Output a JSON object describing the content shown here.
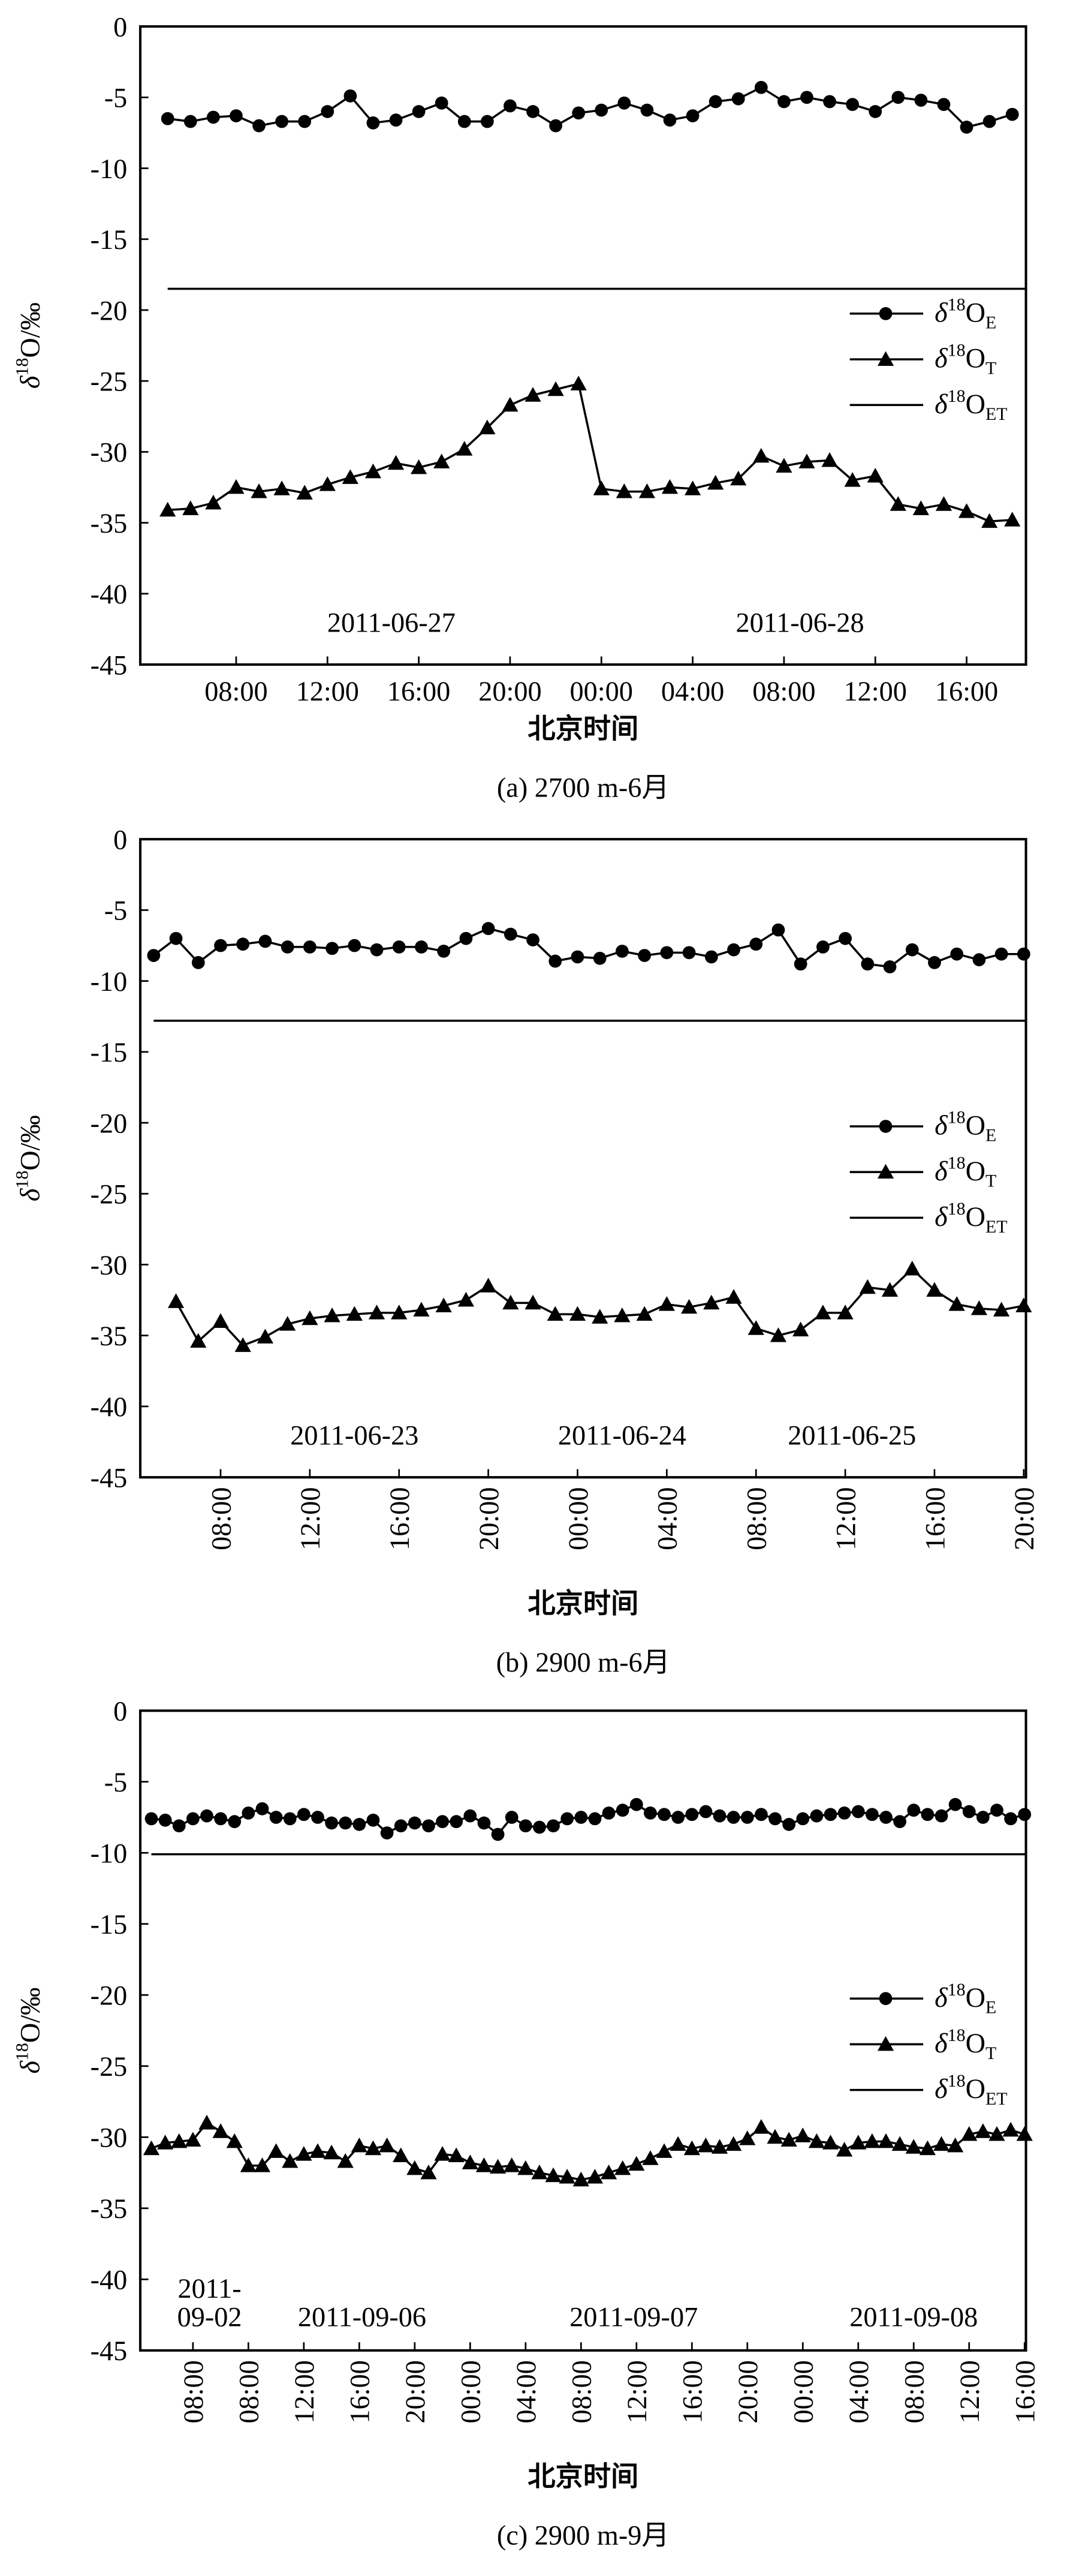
{
  "chart_data": [
    {
      "type": "line",
      "caption": "(a) 2700 m-6月",
      "xlabel": "北京时间",
      "ylabel": "δ18O/‰",
      "legend": "right",
      "xtick_rotation": 0,
      "xlim": [
        3.8,
        42.6
      ],
      "ylim": [
        -45,
        0
      ],
      "yticks": [
        -45,
        -40,
        -35,
        -30,
        -25,
        -20,
        -15,
        -10,
        -5,
        0
      ],
      "xticks": [
        {
          "value": 8,
          "label": "08:00"
        },
        {
          "value": 12,
          "label": "12:00"
        },
        {
          "value": 16,
          "label": "16:00"
        },
        {
          "value": 20,
          "label": "20:00"
        },
        {
          "value": 24,
          "label": "00:00"
        },
        {
          "value": 28,
          "label": "04:00"
        },
        {
          "value": 32,
          "label": "08:00"
        },
        {
          "value": 36,
          "label": "12:00"
        },
        {
          "value": 40,
          "label": "16:00"
        }
      ],
      "annotations": [
        {
          "text": "2011-06-27",
          "x": 14.8,
          "y": -42
        },
        {
          "text": "2011-06-28",
          "x": 32.7,
          "y": -42
        }
      ],
      "series": [
        {
          "name": "δ18OE",
          "color": "#000",
          "marker": "circle",
          "x": [
            5,
            6,
            7,
            8,
            9,
            10,
            11,
            12,
            13,
            14,
            15,
            16,
            17,
            18,
            19,
            20,
            21,
            22,
            23,
            24,
            25,
            26,
            27,
            28,
            29,
            30,
            31,
            32,
            33,
            34,
            35,
            36,
            37,
            38,
            39,
            40,
            41,
            42
          ],
          "values": [
            -6.5,
            -6.7,
            -6.4,
            -6.3,
            -7,
            -6.7,
            -6.7,
            -6,
            -4.9,
            -6.8,
            -6.6,
            -6,
            -5.4,
            -6.7,
            -6.7,
            -5.6,
            -6,
            -7,
            -6.1,
            -5.9,
            -5.4,
            -5.9,
            -6.6,
            -6.3,
            -5.3,
            -5.1,
            -4.3,
            -5.3,
            -5,
            -5.3,
            -5.5,
            -6,
            -5,
            -5.2,
            -5.5,
            -7.1,
            -6.7,
            -6.2
          ]
        },
        {
          "name": "δ18OT",
          "color": "#000",
          "marker": "triangle",
          "x": [
            5,
            6,
            7,
            8,
            9,
            10,
            11,
            12,
            13,
            14,
            15,
            16,
            17,
            18,
            19,
            20,
            21,
            22,
            23,
            24,
            25,
            26,
            27,
            28,
            29,
            30,
            31,
            32,
            33,
            34,
            35,
            36,
            37,
            38,
            39,
            40,
            41,
            42
          ],
          "values": [
            -34.1,
            -34,
            -33.6,
            -32.5,
            -32.8,
            -32.6,
            -32.9,
            -32.3,
            -31.8,
            -31.4,
            -30.8,
            -31.1,
            -30.7,
            -29.8,
            -28.3,
            -26.7,
            -26,
            -25.6,
            -25.2,
            -32.6,
            -32.8,
            -32.8,
            -32.5,
            -32.6,
            -32.2,
            -31.9,
            -30.3,
            -31,
            -30.7,
            -30.6,
            -32,
            -31.7,
            -33.7,
            -34,
            -33.7,
            -34.2,
            -34.9,
            -34.8
          ]
        },
        {
          "name": "δ18OET",
          "color": "#000",
          "marker": "none",
          "x": [
            5,
            42.6
          ],
          "values": [
            -18.5,
            -18.5
          ]
        }
      ]
    },
    {
      "type": "line",
      "caption": "(b) 2900 m-6月",
      "xlabel": "北京时间",
      "ylabel": "δ18O/‰",
      "legend": "right",
      "xtick_rotation": -90,
      "xlim": [
        4.4,
        44.1
      ],
      "ylim": [
        -45,
        0
      ],
      "yticks": [
        -45,
        -40,
        -35,
        -30,
        -25,
        -20,
        -15,
        -10,
        -5,
        0
      ],
      "xticks": [
        {
          "value": 8,
          "label": "08:00"
        },
        {
          "value": 12,
          "label": "12:00"
        },
        {
          "value": 16,
          "label": "16:00"
        },
        {
          "value": 20,
          "label": "20:00"
        },
        {
          "value": 24,
          "label": "00:00"
        },
        {
          "value": 28,
          "label": "04:00"
        },
        {
          "value": 32,
          "label": "08:00"
        },
        {
          "value": 36,
          "label": "12:00"
        },
        {
          "value": 40,
          "label": "16:00"
        },
        {
          "value": 44,
          "label": "20:00"
        }
      ],
      "annotations": [
        {
          "text": "2011-06-23",
          "x": 14,
          "y": -42
        },
        {
          "text": "2011-06-24",
          "x": 26,
          "y": -42
        },
        {
          "text": "2011-06-25",
          "x": 36.3,
          "y": -42
        }
      ],
      "series": [
        {
          "name": "δ18OE",
          "color": "#000",
          "marker": "circle",
          "x": [
            5,
            6,
            7,
            8,
            9,
            10,
            11,
            12,
            13,
            14,
            15,
            16,
            17,
            18,
            19,
            20,
            21,
            22,
            23,
            24,
            25,
            26,
            27,
            28,
            29,
            30,
            31,
            32,
            33,
            34,
            35,
            36,
            37,
            38,
            39,
            40,
            41,
            42,
            43,
            44
          ],
          "values": [
            -8.2,
            -7,
            -8.7,
            -7.5,
            -7.4,
            -7.2,
            -7.6,
            -7.6,
            -7.7,
            -7.5,
            -7.8,
            -7.6,
            -7.6,
            -7.9,
            -7,
            -6.3,
            -6.7,
            -7.1,
            -8.6,
            -8.3,
            -8.4,
            -7.9,
            -8.2,
            -8,
            -8,
            -8.3,
            -7.8,
            -7.4,
            -6.4,
            -8.8,
            -7.6,
            -7,
            -8.8,
            -9,
            -7.8,
            -8.7,
            -8.1,
            -8.5,
            -8.1,
            -8.1
          ]
        },
        {
          "name": "δ18OT",
          "color": "#000",
          "marker": "triangle",
          "x": [
            6,
            7,
            8,
            9,
            10,
            11,
            12,
            13,
            14,
            15,
            16,
            17,
            18,
            19,
            20,
            21,
            22,
            23,
            24,
            25,
            26,
            27,
            28,
            29,
            30,
            31,
            32,
            33,
            34,
            35,
            36,
            37,
            38,
            39,
            40,
            41,
            42,
            43,
            44
          ],
          "values": [
            -32.6,
            -35.4,
            -34,
            -35.7,
            -35.1,
            -34.2,
            -33.8,
            -33.6,
            -33.5,
            -33.4,
            -33.4,
            -33.2,
            -32.9,
            -32.5,
            -31.5,
            -32.7,
            -32.7,
            -33.5,
            -33.5,
            -33.7,
            -33.6,
            -33.5,
            -32.8,
            -33,
            -32.7,
            -32.3,
            -34.5,
            -35,
            -34.6,
            -33.4,
            -33.4,
            -31.6,
            -31.8,
            -30.3,
            -31.8,
            -32.8,
            -33.1,
            -33.2,
            -32.9
          ]
        },
        {
          "name": "δ18OET",
          "color": "#000",
          "marker": "none",
          "x": [
            5,
            44.1
          ],
          "values": [
            -12.8,
            -12.8
          ]
        }
      ]
    },
    {
      "type": "line",
      "caption": "(c) 2900 m-9月",
      "xlabel": "北京时间",
      "ylabel": "δ18O/‰",
      "legend": "right",
      "xtick_rotation": -90,
      "xlim": [
        0.2,
        64.1
      ],
      "ylim": [
        -45,
        0
      ],
      "yticks": [
        -45,
        -40,
        -35,
        -30,
        -25,
        -20,
        -15,
        -10,
        -5,
        0
      ],
      "xticks": [
        {
          "value": 4,
          "label": "08:00"
        },
        {
          "value": 8,
          "label": "08:00"
        },
        {
          "value": 12,
          "label": "12:00"
        },
        {
          "value": 16,
          "label": "16:00"
        },
        {
          "value": 20,
          "label": "20:00"
        },
        {
          "value": 24,
          "label": "00:00"
        },
        {
          "value": 28,
          "label": "04:00"
        },
        {
          "value": 32,
          "label": "08:00"
        },
        {
          "value": 36,
          "label": "12:00"
        },
        {
          "value": 40,
          "label": "16:00"
        },
        {
          "value": 44,
          "label": "20:00"
        },
        {
          "value": 48,
          "label": "00:00"
        },
        {
          "value": 52,
          "label": "04:00"
        },
        {
          "value": 56,
          "label": "08:00"
        },
        {
          "value": 60,
          "label": "12:00"
        },
        {
          "value": 64,
          "label": "16:00"
        }
      ],
      "annotations": [
        {
          "text": "2011-",
          "x": 5.2,
          "y": -40.6
        },
        {
          "text": "09-02",
          "x": 5.2,
          "y": -42.6
        },
        {
          "text": "2011-09-06",
          "x": 16.2,
          "y": -42.6
        },
        {
          "text": "2011-09-07",
          "x": 35.8,
          "y": -42.6
        },
        {
          "text": "2011-09-08",
          "x": 56,
          "y": -42.6
        }
      ],
      "series": [
        {
          "name": "δ18OE",
          "color": "#000",
          "marker": "circle",
          "x": [
            1,
            2,
            3,
            4,
            5,
            6,
            7,
            8,
            9,
            10,
            11,
            12,
            13,
            14,
            15,
            16,
            17,
            18,
            19,
            20,
            21,
            22,
            23,
            24,
            25,
            26,
            27,
            28,
            29,
            30,
            31,
            32,
            33,
            34,
            35,
            36,
            37,
            38,
            39,
            40,
            41,
            42,
            43,
            44,
            45,
            46,
            47,
            48,
            49,
            50,
            51,
            52,
            53,
            54,
            55,
            56,
            57,
            58,
            59,
            60,
            61,
            62,
            63,
            64
          ],
          "values": [
            -7.6,
            -7.7,
            -8.1,
            -7.6,
            -7.4,
            -7.6,
            -7.8,
            -7.2,
            -6.9,
            -7.5,
            -7.6,
            -7.3,
            -7.5,
            -7.9,
            -7.9,
            -8,
            -7.7,
            -8.6,
            -8.1,
            -7.9,
            -8.1,
            -7.8,
            -7.8,
            -7.4,
            -7.9,
            -8.7,
            -7.5,
            -8.1,
            -8.2,
            -8.1,
            -7.6,
            -7.5,
            -7.6,
            -7.2,
            -7,
            -6.6,
            -7.2,
            -7.3,
            -7.5,
            -7.3,
            -7.1,
            -7.4,
            -7.5,
            -7.5,
            -7.3,
            -7.6,
            -8,
            -7.6,
            -7.4,
            -7.3,
            -7.2,
            -7.1,
            -7.3,
            -7.5,
            -7.8,
            -7,
            -7.3,
            -7.4,
            -6.6,
            -7.1,
            -7.5,
            -7,
            -7.6,
            -7.3
          ]
        },
        {
          "name": "δ18OT",
          "color": "#000",
          "marker": "triangle",
          "x": [
            1,
            2,
            3,
            4,
            5,
            6,
            7,
            8,
            9,
            10,
            11,
            12,
            13,
            14,
            15,
            16,
            17,
            18,
            19,
            20,
            21,
            22,
            23,
            24,
            25,
            26,
            27,
            28,
            29,
            30,
            31,
            32,
            33,
            34,
            35,
            36,
            37,
            38,
            39,
            40,
            41,
            42,
            43,
            44,
            45,
            46,
            47,
            48,
            49,
            50,
            51,
            52,
            53,
            54,
            55,
            56,
            57,
            58,
            59,
            60,
            61,
            62,
            63,
            64
          ],
          "values": [
            -30.8,
            -30.4,
            -30.3,
            -30.2,
            -29,
            -29.6,
            -30.3,
            -32,
            -32,
            -31,
            -31.7,
            -31.2,
            -31,
            -31.1,
            -31.7,
            -30.6,
            -30.8,
            -30.6,
            -31.3,
            -32.2,
            -32.5,
            -31.2,
            -31.3,
            -31.8,
            -32,
            -32.1,
            -32,
            -32.2,
            -32.5,
            -32.7,
            -32.8,
            -33,
            -32.8,
            -32.5,
            -32.2,
            -31.9,
            -31.5,
            -31,
            -30.5,
            -30.8,
            -30.6,
            -30.7,
            -30.5,
            -30.1,
            -29.3,
            -30,
            -30.2,
            -29.9,
            -30.3,
            -30.4,
            -30.9,
            -30.4,
            -30.3,
            -30.3,
            -30.5,
            -30.7,
            -30.8,
            -30.5,
            -30.6,
            -29.8,
            -29.6,
            -29.8,
            -29.5,
            -29.8
          ]
        },
        {
          "name": "δ18OET",
          "color": "#000",
          "marker": "none",
          "x": [
            1,
            64.1
          ],
          "values": [
            -10.1,
            -10.1
          ]
        }
      ]
    }
  ]
}
